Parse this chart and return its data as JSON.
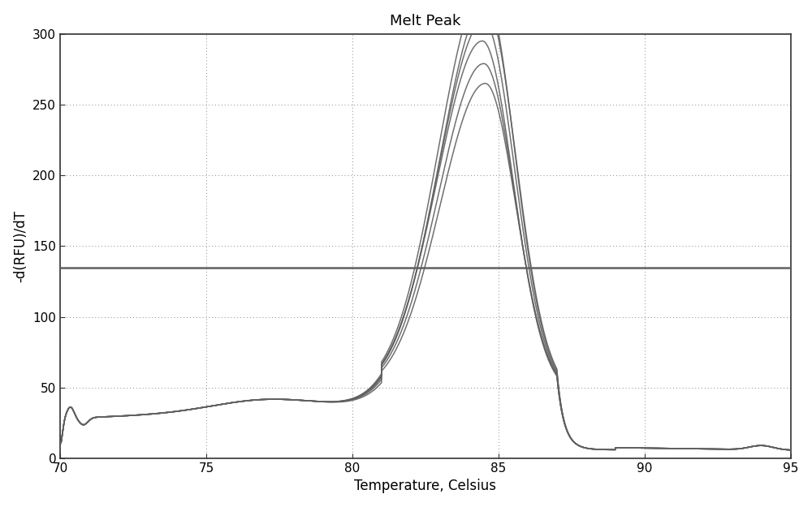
{
  "title": "Melt Peak",
  "xlabel": "Temperature, Celsius",
  "ylabel": "-d(RFU)/dT",
  "xlim": [
    70,
    95
  ],
  "ylim": [
    0,
    300
  ],
  "xticks": [
    70,
    75,
    80,
    85,
    90,
    95
  ],
  "yticks": [
    0,
    50,
    100,
    150,
    200,
    250,
    300
  ],
  "threshold_y": 135,
  "threshold_color": "#606060",
  "line_color": "#606060",
  "background_color": "#ffffff",
  "grid_color": "#888888",
  "n_curves": 6,
  "peak_heights": [
    287,
    276,
    264,
    250,
    234,
    220
  ],
  "peak_temp_offsets": [
    0.0,
    0.05,
    0.0,
    -0.05,
    0.0,
    0.05
  ],
  "title_fontsize": 13,
  "label_fontsize": 12,
  "tick_fontsize": 11,
  "figsize": [
    10.0,
    6.25
  ],
  "dpi": 100
}
